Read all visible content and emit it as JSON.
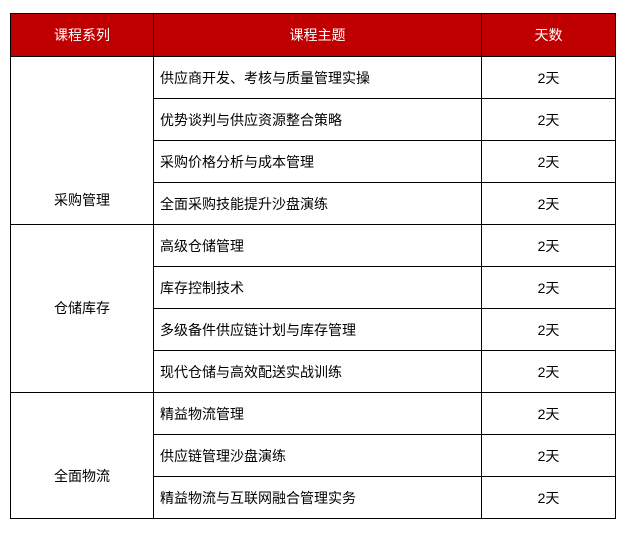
{
  "header": {
    "series": "课程系列",
    "topic": "课程主题",
    "days": "天数"
  },
  "colors": {
    "header_bg": "#c00000",
    "header_text": "#ffffff",
    "border": "#000000"
  },
  "groups": [
    {
      "name": "采购管理",
      "courses": [
        {
          "topic": "供应商开发、考核与质量管理实操",
          "days": "2天"
        },
        {
          "topic": "优势谈判与供应资源整合策略",
          "days": "2天"
        },
        {
          "topic": "采购价格分析与成本管理",
          "days": "2天"
        },
        {
          "topic": "全面采购技能提升沙盘演练",
          "days": "2天"
        }
      ]
    },
    {
      "name": "仓储库存",
      "courses": [
        {
          "topic": "高级仓储管理",
          "days": "2天"
        },
        {
          "topic": "库存控制技术",
          "days": "2天"
        },
        {
          "topic": "多级备件供应链计划与库存管理",
          "days": "2天"
        },
        {
          "topic": "现代仓储与高效配送实战训练",
          "days": "2天"
        }
      ]
    },
    {
      "name": "全面物流",
      "courses": [
        {
          "topic": "精益物流管理",
          "days": "2天"
        },
        {
          "topic": "供应链管理沙盘演练",
          "days": "2天"
        },
        {
          "topic": "精益物流与互联网融合管理实务",
          "days": "2天"
        }
      ]
    }
  ]
}
